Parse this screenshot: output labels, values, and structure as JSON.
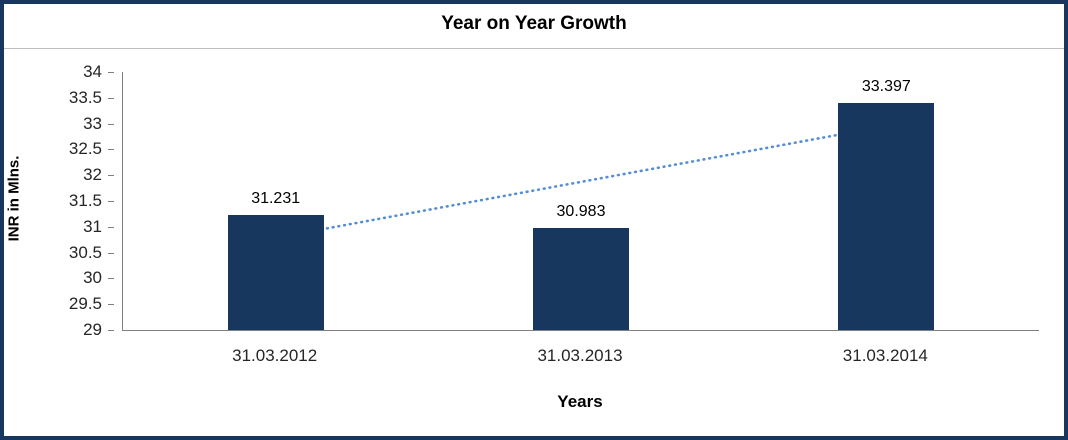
{
  "chart_data": {
    "type": "bar",
    "title": "Year on Year Growth",
    "xlabel": "Years",
    "ylabel": "INR in Mlns.",
    "categories": [
      "31.03.2012",
      "31.03.2013",
      "31.03.2014"
    ],
    "values": [
      31.231,
      30.983,
      33.397
    ],
    "data_labels": [
      "31.231",
      "30.983",
      "33.397"
    ],
    "ylim": [
      29,
      34
    ],
    "ytick_step": 0.5,
    "grid": "off",
    "legend": "none",
    "bar_color": "#17375E",
    "frame_color": "#17375E",
    "axis_color": "#808080",
    "trendline": {
      "type": "linear",
      "style": "dotted",
      "color": "#558ED5"
    }
  }
}
